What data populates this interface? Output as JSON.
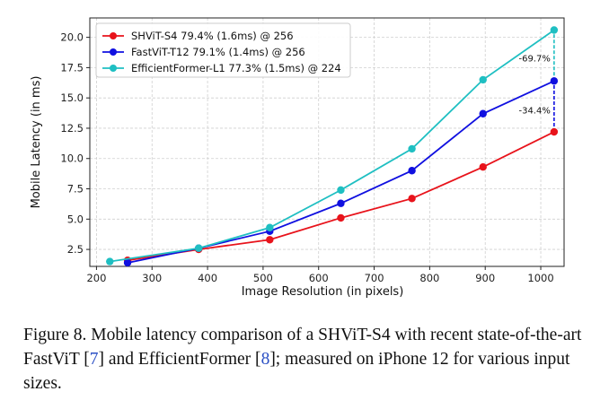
{
  "chart_data": {
    "type": "line",
    "xlabel": "Image Resolution (in pixels)",
    "ylabel": "Mobile Latency (in ms)",
    "xlim": [
      188,
      1042
    ],
    "ylim": [
      1.1,
      21.6
    ],
    "xticks": [
      200,
      300,
      400,
      500,
      600,
      700,
      800,
      900,
      1000
    ],
    "yticks": [
      2.5,
      5.0,
      7.5,
      10.0,
      12.5,
      15.0,
      17.5,
      20.0
    ],
    "xtick_labels": [
      "200",
      "300",
      "400",
      "500",
      "600",
      "700",
      "800",
      "900",
      "1000"
    ],
    "ytick_labels": [
      "2.5",
      "5.0",
      "7.5",
      "10.0",
      "12.5",
      "15.0",
      "17.5",
      "20.0"
    ],
    "grid": true,
    "legend_position": "top-left",
    "series": [
      {
        "name": "SHViT-S4 79.4% (1.6ms) @ 256",
        "color": "#e8131b",
        "x": [
          256,
          384,
          512,
          640,
          768,
          896,
          1024
        ],
        "y": [
          1.6,
          2.5,
          3.3,
          5.1,
          6.7,
          9.3,
          12.2
        ]
      },
      {
        "name": "FastViT-T12 79.1% (1.4ms) @ 256",
        "color": "#1010e0",
        "x": [
          256,
          384,
          512,
          640,
          768,
          896,
          1024
        ],
        "y": [
          1.4,
          2.6,
          4.0,
          6.3,
          9.0,
          13.7,
          16.4
        ]
      },
      {
        "name": "EfficientFormer-L1 77.3% (1.5ms) @ 224",
        "color": "#1fbfc2",
        "x": [
          224,
          384,
          512,
          640,
          768,
          896,
          1024
        ],
        "y": [
          1.5,
          2.6,
          4.3,
          7.4,
          10.8,
          16.5,
          20.6
        ]
      }
    ],
    "annotations": [
      {
        "text": "-69.7%",
        "x": 1024,
        "y_from": 16.4,
        "y_to": 20.6,
        "color": "#1fbfc2",
        "label_y": 18.0
      },
      {
        "text": "-34.4%",
        "x": 1024,
        "y_from": 12.2,
        "y_to": 16.4,
        "color": "#1010e0",
        "label_y": 13.7
      }
    ]
  },
  "caption": {
    "prefix": "Figure 8. Mobile latency comparison of a SHViT-S4 with recent state-of-the-art FastViT [",
    "ref1": "7",
    "middle": "] and EfficientFormer [",
    "ref2": "8",
    "suffix": "]; measured on iPhone 12 for various input sizes."
  }
}
